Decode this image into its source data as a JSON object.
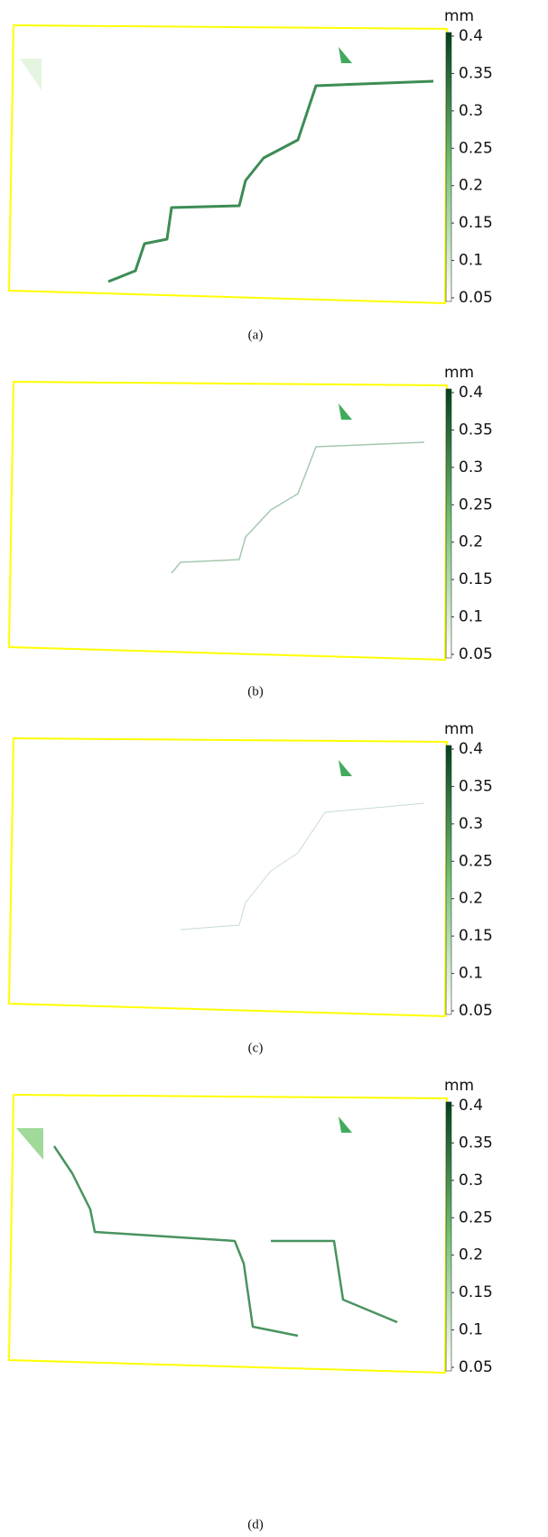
{
  "chart_data": [
    {
      "type": "heatmap",
      "caption": "(a)",
      "colorbar_label": "mm",
      "clim": [
        0.05,
        0.4
      ],
      "cticks": [
        0.05,
        0.1,
        0.15,
        0.2,
        0.25,
        0.3,
        0.35,
        0.4
      ],
      "colors": [
        "#ffffff",
        "#00441b"
      ],
      "frame_color": "#ffff00"
    },
    {
      "type": "heatmap",
      "caption": "(b)",
      "colorbar_label": "mm",
      "clim": [
        0.05,
        0.4
      ],
      "cticks": [
        0.05,
        0.1,
        0.15,
        0.2,
        0.25,
        0.3,
        0.35,
        0.4
      ],
      "colors": [
        "#ffffff",
        "#00441b"
      ],
      "frame_color": "#ffff00"
    },
    {
      "type": "heatmap",
      "caption": "(c)",
      "colorbar_label": "mm",
      "clim": [
        0.05,
        0.4
      ],
      "cticks": [
        0.05,
        0.1,
        0.15,
        0.2,
        0.25,
        0.3,
        0.35,
        0.4
      ],
      "colors": [
        "#ffffff",
        "#00441b"
      ],
      "frame_color": "#ffff00"
    },
    {
      "type": "heatmap",
      "caption": "(d)",
      "colorbar_label": "mm",
      "clim": [
        0.05,
        0.4
      ],
      "cticks": [
        0.05,
        0.1,
        0.15,
        0.2,
        0.25,
        0.3,
        0.35,
        0.4
      ],
      "colors": [
        "#ffffff",
        "#00441b"
      ],
      "frame_color": "#ffff00"
    }
  ]
}
